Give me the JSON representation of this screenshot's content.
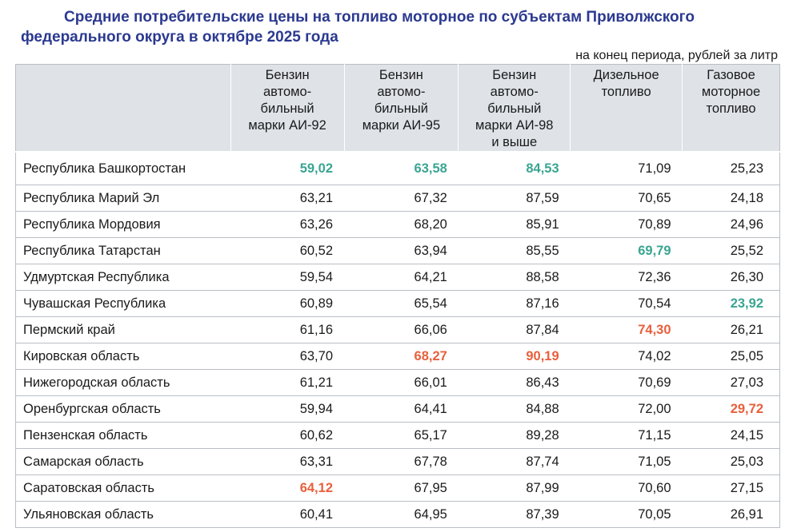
{
  "document": {
    "title_line1": "Средние потребительские цены на топливо моторное по субъектам Приволжского",
    "title_line2": "федерального округа в октябре 2025 года",
    "unit_note": "на конец периода, рублей за литр"
  },
  "colors": {
    "title": "#2b3990",
    "min_highlight": "#3aa592",
    "max_highlight": "#e8603c",
    "header_bg": "#dfe3e8"
  },
  "table": {
    "columns": [
      {
        "label": ""
      },
      {
        "label": "Бензин автомо-бильный марки АИ-92"
      },
      {
        "label": "Бензин автомо-бильный марки АИ-95"
      },
      {
        "label": "Бензин автомо-бильный марки АИ-98 и выше"
      },
      {
        "label": "Дизельное топливо"
      },
      {
        "label": "Газовое моторное топливо"
      }
    ],
    "header_lines": [
      [],
      [
        "Бензин",
        "автомо-",
        "бильный",
        "марки АИ-92"
      ],
      [
        "Бензин",
        "автомо-",
        "бильный",
        "марки АИ-95"
      ],
      [
        "Бензин",
        "автомо-",
        "бильный",
        "марки АИ-98",
        "и выше"
      ],
      [
        "Дизельное",
        "топливо"
      ],
      [
        "Газовое",
        "моторное",
        "топливо"
      ]
    ],
    "rows": [
      {
        "region": "Республика Башкортостан",
        "values": [
          "59,02",
          "63,58",
          "84,53",
          "71,09",
          "25,23"
        ],
        "highlight": [
          "min",
          "min",
          "min",
          "",
          ""
        ]
      },
      {
        "region": "Республика Марий Эл",
        "values": [
          "63,21",
          "67,32",
          "87,59",
          "70,65",
          "24,18"
        ],
        "highlight": [
          "",
          "",
          "",
          "",
          ""
        ]
      },
      {
        "region": "Республика Мордовия",
        "values": [
          "63,26",
          "68,20",
          "85,91",
          "70,89",
          "24,96"
        ],
        "highlight": [
          "",
          "",
          "",
          "",
          ""
        ]
      },
      {
        "region": "Республика Татарстан",
        "values": [
          "60,52",
          "63,94",
          "85,55",
          "69,79",
          "25,52"
        ],
        "highlight": [
          "",
          "",
          "",
          "min",
          ""
        ]
      },
      {
        "region": "Удмуртская Республика",
        "values": [
          "59,54",
          "64,21",
          "88,58",
          "72,36",
          "26,30"
        ],
        "highlight": [
          "",
          "",
          "",
          "",
          ""
        ]
      },
      {
        "region": "Чувашская Республика",
        "values": [
          "60,89",
          "65,54",
          "87,16",
          "70,54",
          "23,92"
        ],
        "highlight": [
          "",
          "",
          "",
          "",
          "min"
        ]
      },
      {
        "region": "Пермский край",
        "values": [
          "61,16",
          "66,06",
          "87,84",
          "74,30",
          "26,21"
        ],
        "highlight": [
          "",
          "",
          "",
          "max",
          ""
        ]
      },
      {
        "region": "Кировская область",
        "values": [
          "63,70",
          "68,27",
          "90,19",
          "74,02",
          "25,05"
        ],
        "highlight": [
          "",
          "max",
          "max",
          "",
          ""
        ]
      },
      {
        "region": "Нижегородская область",
        "values": [
          "61,21",
          "66,01",
          "86,43",
          "70,69",
          "27,03"
        ],
        "highlight": [
          "",
          "",
          "",
          "",
          ""
        ]
      },
      {
        "region": "Оренбургская область",
        "values": [
          "59,94",
          "64,41",
          "84,88",
          "72,00",
          "29,72"
        ],
        "highlight": [
          "",
          "",
          "",
          "",
          "max"
        ]
      },
      {
        "region": "Пензенская область",
        "values": [
          "60,62",
          "65,17",
          "89,28",
          "71,15",
          "24,15"
        ],
        "highlight": [
          "",
          "",
          "",
          "",
          ""
        ]
      },
      {
        "region": "Самарская область",
        "values": [
          "63,31",
          "67,78",
          "87,74",
          "71,05",
          "25,03"
        ],
        "highlight": [
          "",
          "",
          "",
          "",
          ""
        ]
      },
      {
        "region": "Саратовская область",
        "values": [
          "64,12",
          "67,95",
          "87,99",
          "70,60",
          "27,15"
        ],
        "highlight": [
          "max",
          "",
          "",
          "",
          ""
        ]
      },
      {
        "region": "Ульяновская область",
        "values": [
          "60,41",
          "64,95",
          "87,39",
          "70,05",
          "26,91"
        ],
        "highlight": [
          "",
          "",
          "",
          "",
          ""
        ]
      }
    ]
  }
}
